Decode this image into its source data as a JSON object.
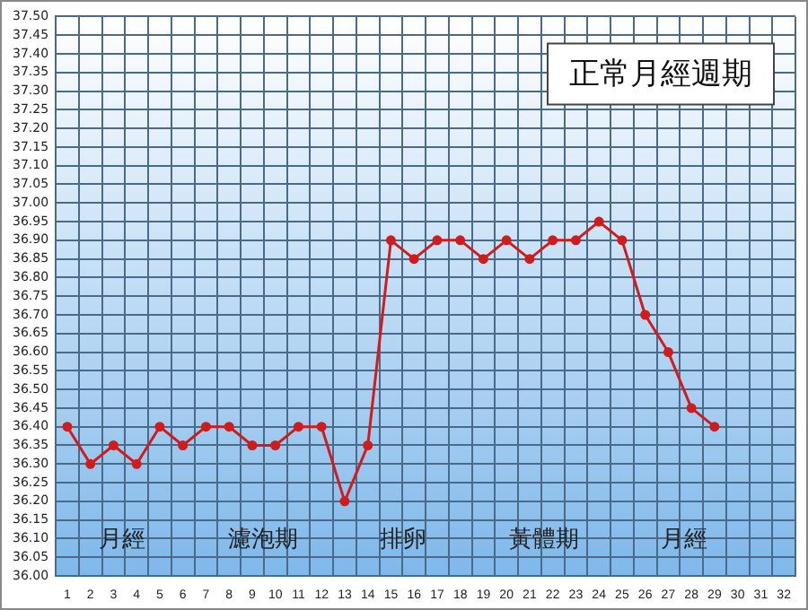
{
  "chart_data": {
    "type": "line",
    "title": "正常月經週期",
    "categories": [
      "1",
      "2",
      "3",
      "4",
      "5",
      "6",
      "7",
      "8",
      "9",
      "10",
      "11",
      "12",
      "13",
      "14",
      "15",
      "16",
      "17",
      "18",
      "19",
      "20",
      "21",
      "22",
      "23",
      "24",
      "25",
      "26",
      "27",
      "28",
      "29",
      "30",
      "31",
      "32"
    ],
    "series": [
      {
        "color": "#d01c1c",
        "values": [
          36.4,
          36.3,
          36.35,
          36.3,
          36.4,
          36.35,
          36.4,
          36.4,
          36.35,
          36.35,
          36.4,
          36.4,
          36.2,
          36.35,
          36.9,
          36.85,
          36.9,
          36.9,
          36.85,
          36.9,
          36.85,
          36.9,
          36.9,
          36.95,
          36.9,
          36.7,
          36.6,
          36.45,
          36.4,
          null,
          null,
          null
        ]
      }
    ],
    "ylim": [
      36.0,
      37.5
    ],
    "yticks": [
      {
        "value": 36.0,
        "label": "36.00"
      },
      {
        "value": 36.05,
        "label": "36.05"
      },
      {
        "value": 36.1,
        "label": "36.10"
      },
      {
        "value": 36.15,
        "label": "36.15"
      },
      {
        "value": 36.2,
        "label": "36.20"
      },
      {
        "value": 36.25,
        "label": "36.25"
      },
      {
        "value": 36.3,
        "label": "36.30"
      },
      {
        "value": 36.35,
        "label": "36.35"
      },
      {
        "value": 36.4,
        "label": "36.40"
      },
      {
        "value": 36.45,
        "label": "36.45"
      },
      {
        "value": 36.5,
        "label": "36.50"
      },
      {
        "value": 36.55,
        "label": "36.55"
      },
      {
        "value": 36.6,
        "label": "36.60"
      },
      {
        "value": 36.65,
        "label": "36.65"
      },
      {
        "value": 36.7,
        "label": "36.70"
      },
      {
        "value": 36.75,
        "label": "36.75"
      },
      {
        "value": 36.8,
        "label": "36.80"
      },
      {
        "value": 36.85,
        "label": "36.85"
      },
      {
        "value": 36.9,
        "label": "36.90"
      },
      {
        "value": 36.95,
        "label": "36.95"
      },
      {
        "value": 37.0,
        "label": "37.00"
      },
      {
        "value": 37.05,
        "label": "37.05"
      },
      {
        "value": 37.1,
        "label": "37.10"
      },
      {
        "value": 37.15,
        "label": "37.15"
      },
      {
        "value": 37.2,
        "label": "37.20"
      },
      {
        "value": 37.25,
        "label": "37.25"
      },
      {
        "value": 37.3,
        "label": "37.30"
      },
      {
        "value": 37.35,
        "label": "37.35"
      },
      {
        "value": 37.4,
        "label": "37.40"
      },
      {
        "value": 37.45,
        "label": "37.45"
      },
      {
        "value": 37.5,
        "label": "37.50"
      }
    ],
    "annotations": [
      "月經",
      "濾泡期",
      "排卵",
      "黃體期",
      "月經"
    ],
    "grid": true,
    "legend": false,
    "marker": "circle",
    "line_style": "solid"
  }
}
